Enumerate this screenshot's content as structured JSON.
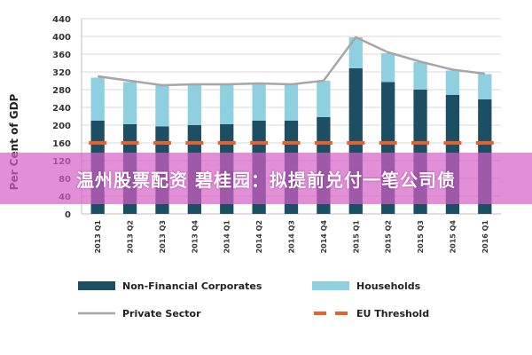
{
  "chart_data": {
    "type": "bar",
    "ylabel": "Per Cent of GDP",
    "ylim": [
      0,
      440
    ],
    "yticks": [
      0,
      40,
      80,
      120,
      160,
      200,
      240,
      280,
      320,
      360,
      400,
      440
    ],
    "grid": true,
    "stacked": true,
    "categories": [
      "2013 Q1",
      "2013 Q2",
      "2013 Q3",
      "2013 Q4",
      "2014 Q1",
      "2014 Q2",
      "2014 Q3",
      "2014 Q4",
      "2015 Q1",
      "2015 Q2",
      "2015 Q3",
      "2015 Q4",
      "2016 Q1"
    ],
    "series": [
      {
        "name": "Non-Financial Corporates",
        "type": "bar",
        "color": "#1c4f63",
        "values": [
          210,
          202,
          197,
          200,
          202,
          210,
          210,
          218,
          328,
          297,
          280,
          268,
          258
        ]
      },
      {
        "name": "Households",
        "type": "bar",
        "color": "#8ecfe0",
        "values": [
          97,
          95,
          92,
          92,
          90,
          84,
          82,
          82,
          70,
          65,
          62,
          55,
          57
        ]
      },
      {
        "name": "Private Sector",
        "type": "line",
        "color": "#a6a6a6",
        "values": [
          310,
          300,
          290,
          292,
          292,
          294,
          292,
          300,
          398,
          364,
          343,
          325,
          316
        ]
      },
      {
        "name": "EU Threshold",
        "type": "line-dashed",
        "color": "#e8612c",
        "values": [
          160,
          160,
          160,
          160,
          160,
          160,
          160,
          160,
          160,
          160,
          160,
          160,
          160
        ]
      }
    ],
    "legend_position": "bottom"
  },
  "watermark": {
    "text": "温州股票配资 碧桂园：拟提前兑付一笔公司债"
  }
}
